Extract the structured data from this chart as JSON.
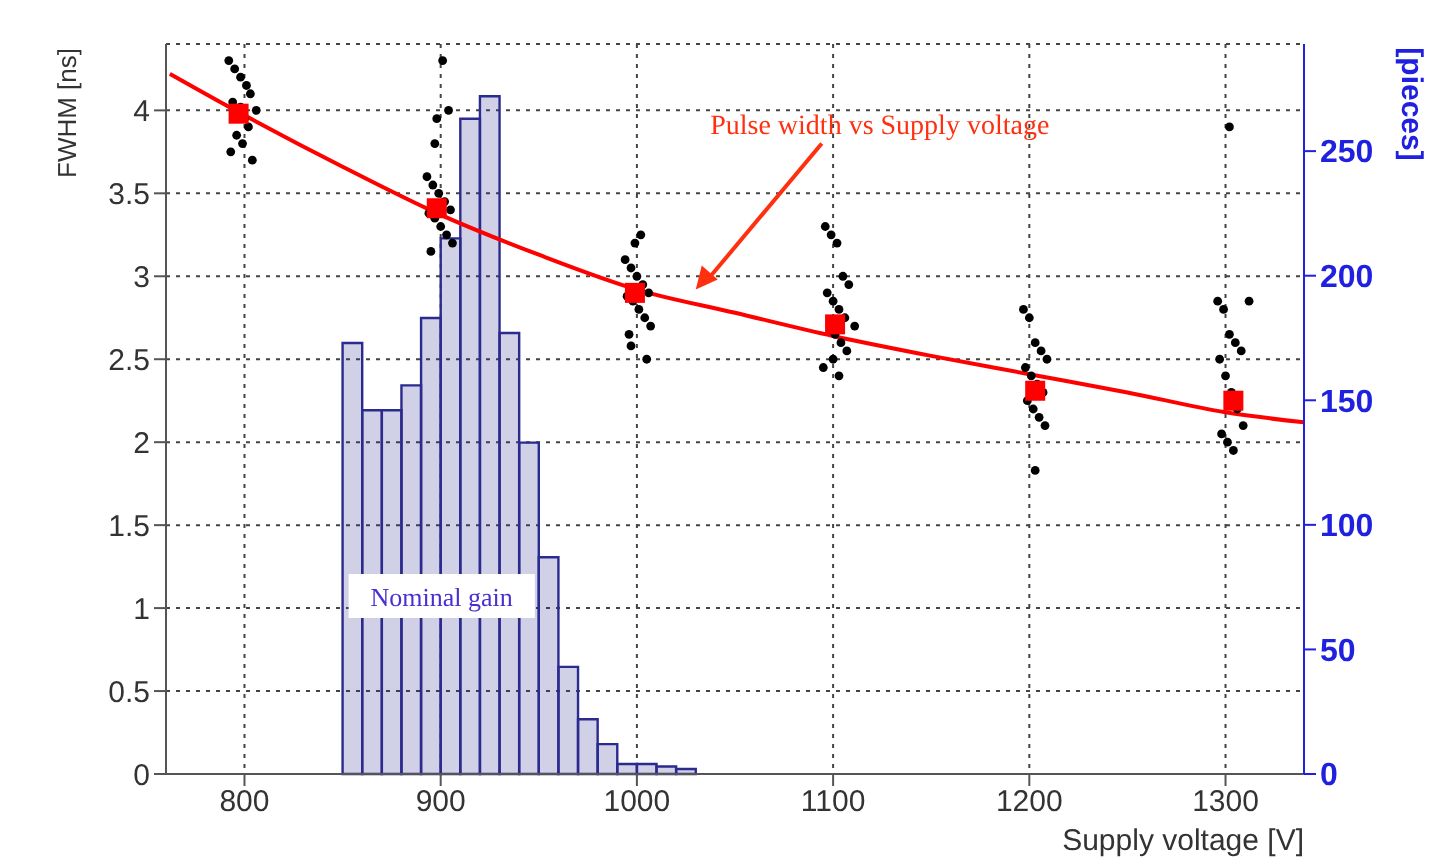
{
  "chart_data": {
    "type": "scatter",
    "xlabel": "Supply voltage [V]",
    "ylabel": "FWHM [ns]",
    "y2label": "[pieces]",
    "xlim": [
      760,
      1340
    ],
    "xticks": [
      800,
      900,
      1000,
      1100,
      1200,
      1300
    ],
    "ylim": [
      0,
      4.4
    ],
    "yticks": [
      0,
      0.5,
      1,
      1.5,
      2,
      2.5,
      3,
      3.5,
      4
    ],
    "y2lim": [
      0,
      293
    ],
    "y2ticks": [
      0,
      50,
      100,
      150,
      200,
      250
    ],
    "grid": true,
    "annotations": [
      "Pulse width vs Supply voltage",
      "Nominal gain"
    ],
    "series": [
      {
        "type": "histogram",
        "axis": "y2",
        "color": "#2b2b8f",
        "bins": [
          850,
          860,
          870,
          880,
          890,
          900,
          910,
          920,
          930,
          940,
          950,
          960,
          970,
          980,
          990,
          1000,
          1010,
          1020,
          1030
        ],
        "values": [
          173,
          146,
          146,
          156,
          183,
          215,
          263,
          272,
          177,
          133,
          87,
          43,
          22,
          12,
          4,
          4,
          3,
          2
        ]
      },
      {
        "marker": "circle",
        "color": "#000000",
        "x": [
          792,
          795,
          798,
          801,
          803,
          794,
          806,
          800,
          802,
          796,
          799,
          793,
          804,
          798,
          893,
          896,
          899,
          902,
          905,
          894,
          897,
          900,
          903,
          906,
          895,
          898,
          901,
          897,
          904,
          994,
          997,
          1000,
          1003,
          1006,
          995,
          998,
          1001,
          1004,
          1007,
          996,
          999,
          1002,
          1005,
          997,
          1096,
          1099,
          1102,
          1105,
          1108,
          1097,
          1100,
          1103,
          1106,
          1111,
          1101,
          1104,
          1107,
          1100,
          1095,
          1103,
          1197,
          1200,
          1203,
          1206,
          1209,
          1198,
          1201,
          1204,
          1207,
          1199,
          1202,
          1205,
          1208,
          1203,
          1296,
          1312,
          1299,
          1302,
          1305,
          1308,
          1297,
          1300,
          1303,
          1306,
          1309,
          1298,
          1301,
          1304,
          1302
        ],
        "values": [
          4.3,
          4.25,
          4.2,
          4.15,
          4.1,
          4.05,
          4.0,
          3.95,
          3.9,
          3.85,
          3.8,
          3.75,
          3.7,
          4.02,
          3.6,
          3.55,
          3.5,
          3.45,
          3.4,
          3.38,
          3.35,
          3.3,
          3.25,
          3.2,
          3.15,
          3.95,
          4.3,
          3.8,
          4.0,
          3.1,
          3.05,
          3.0,
          2.95,
          2.9,
          2.88,
          2.85,
          2.8,
          2.75,
          2.7,
          2.65,
          3.2,
          3.25,
          2.5,
          2.58,
          3.3,
          3.25,
          3.2,
          3.0,
          2.95,
          2.9,
          2.85,
          2.8,
          2.75,
          2.7,
          2.65,
          2.6,
          2.55,
          2.5,
          2.45,
          2.4,
          2.8,
          2.75,
          2.6,
          2.55,
          2.5,
          2.45,
          2.4,
          2.35,
          2.3,
          2.25,
          2.2,
          2.15,
          2.1,
          1.83,
          2.85,
          2.85,
          2.8,
          2.65,
          2.6,
          2.55,
          2.5,
          2.4,
          2.3,
          2.2,
          2.1,
          2.05,
          2.0,
          1.95,
          3.9
        ]
      },
      {
        "type": "scatter",
        "marker": "square",
        "color": "#ff0000",
        "x": [
          797,
          898,
          999,
          1101,
          1203,
          1304
        ],
        "values": [
          3.98,
          3.41,
          2.9,
          2.71,
          2.31,
          2.25
        ]
      },
      {
        "type": "line",
        "marker": "none",
        "color": "#ff0000",
        "x": [
          762,
          800,
          850,
          900,
          950,
          1000,
          1050,
          1100,
          1150,
          1200,
          1250,
          1300,
          1340
        ],
        "values": [
          4.22,
          3.97,
          3.66,
          3.37,
          3.13,
          2.92,
          2.78,
          2.64,
          2.52,
          2.41,
          2.3,
          2.18,
          2.12
        ]
      }
    ]
  }
}
